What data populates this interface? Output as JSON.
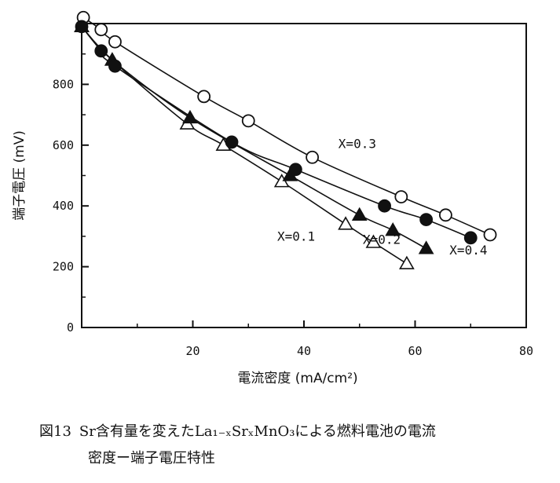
{
  "chart_data": {
    "type": "line",
    "xlabel": "電流密度 (mA/cm²)",
    "ylabel": "端子電圧 (mV)",
    "xlim": [
      0,
      80
    ],
    "ylim": [
      0,
      1000
    ],
    "x_ticks": [
      20,
      40,
      60,
      80
    ],
    "y_ticks": [
      0,
      200,
      400,
      600,
      800
    ],
    "grid": false,
    "legend": "none",
    "series": [
      {
        "name": "X=0.1",
        "marker": "open-triangle",
        "x": [
          0,
          5.5,
          19,
          25.5,
          36,
          47.5,
          52.5,
          58.5
        ],
        "y": [
          990,
          880,
          670,
          600,
          480,
          340,
          280,
          210
        ]
      },
      {
        "name": "X=0.2",
        "marker": "filled-triangle",
        "x": [
          0,
          5.5,
          19.5,
          37.5,
          50,
          56,
          62
        ],
        "y": [
          990,
          880,
          690,
          500,
          370,
          320,
          260
        ]
      },
      {
        "name": "X=0.3",
        "marker": "open-circle",
        "x": [
          0.3,
          3.5,
          6,
          22,
          30,
          41.5,
          57.5,
          65.5,
          73.5
        ],
        "y": [
          1020,
          980,
          940,
          760,
          680,
          560,
          430,
          370,
          305
        ]
      },
      {
        "name": "X=0.4",
        "marker": "filled-circle",
        "x": [
          0,
          3.5,
          6,
          27,
          38.5,
          54.5,
          62,
          70
        ],
        "y": [
          990,
          910,
          860,
          610,
          520,
          400,
          355,
          295
        ]
      }
    ]
  },
  "caption": {
    "figure_number": "図13",
    "line1": "Sr含有量を変えたLa₁₋ₓSrₓMnO₃による燃料電池の電流",
    "line2": "密度ー端子電圧特性"
  }
}
